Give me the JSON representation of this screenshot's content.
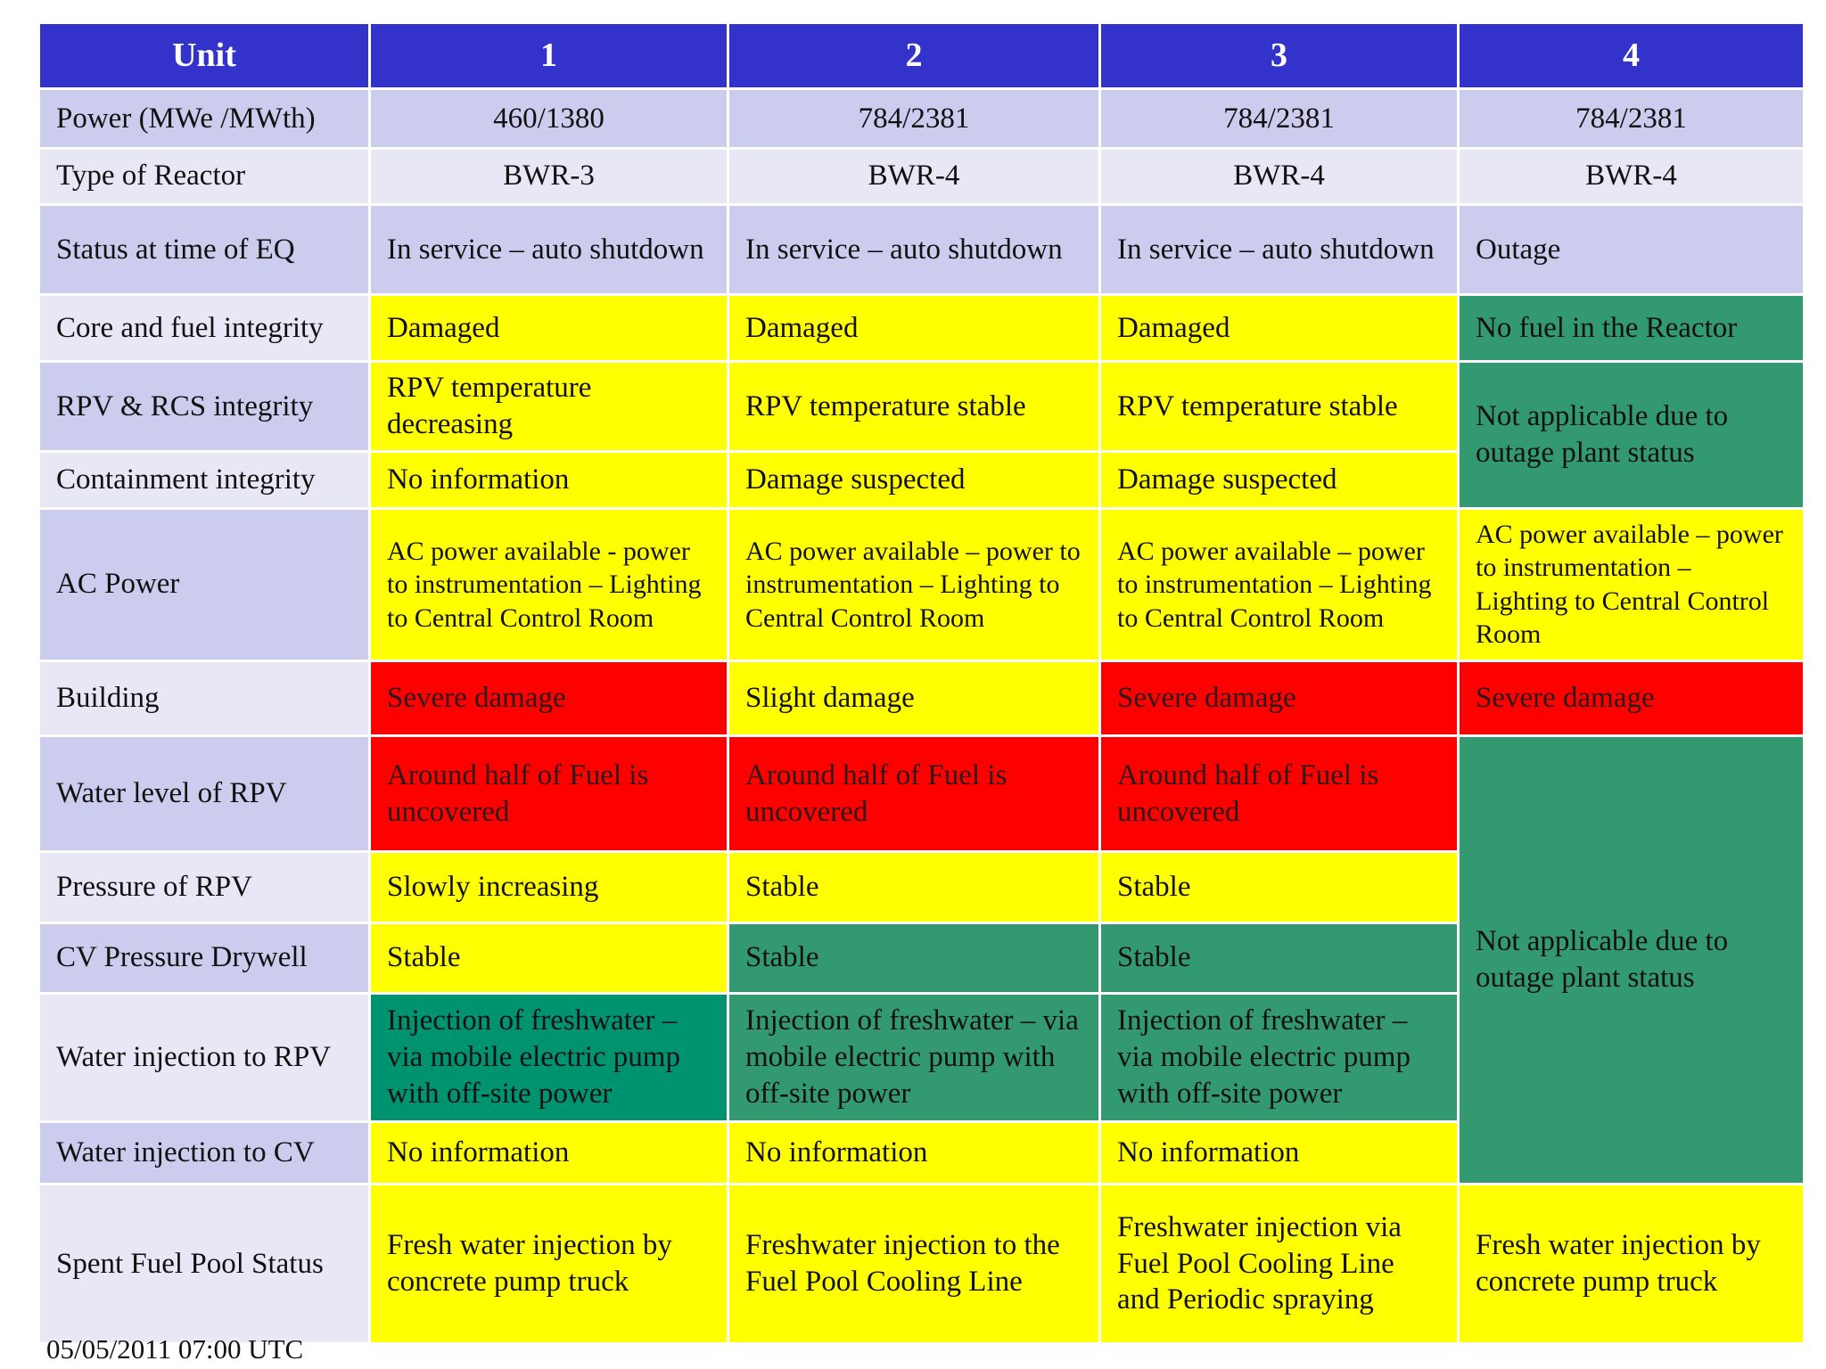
{
  "header": {
    "unit_label": "Unit",
    "units": [
      "1",
      "2",
      "3",
      "4"
    ]
  },
  "rows": {
    "power": {
      "label": "Power (MWe /MWth)",
      "u1": "460/1380",
      "u2": "784/2381",
      "u3": "784/2381",
      "u4": "784/2381"
    },
    "reactor_type": {
      "label": "Type of Reactor",
      "u1": "BWR-3",
      "u2": "BWR-4",
      "u3": "BWR-4",
      "u4": "BWR-4"
    },
    "status_eq": {
      "label": "Status at time of EQ",
      "u1": "In service – auto shutdown",
      "u2": "In service – auto shutdown",
      "u3": "In service – auto shutdown",
      "u4": "Outage"
    },
    "core_fuel": {
      "label": "Core and fuel integrity",
      "u1": "Damaged",
      "u2": "Damaged",
      "u3": "Damaged",
      "u4": "No fuel in the Reactor"
    },
    "rpv_rcs": {
      "label": "RPV & RCS integrity",
      "u1": "RPV temperature decreasing",
      "u2": "RPV temperature stable",
      "u3": "RPV temperature stable",
      "u4_span": "Not applicable due to outage plant status"
    },
    "containment": {
      "label": "Containment integrity",
      "u1": "No information",
      "u2": "Damage suspected",
      "u3": "Damage suspected"
    },
    "ac_power": {
      "label": "AC Power",
      "u1": "AC power available - power to instrumentation – Lighting to Central Control Room",
      "u2": "AC power available – power to instrumentation – Lighting to Central Control Room",
      "u3": "AC power available – power to instrumentation – Lighting to Central Control Room",
      "u4": "AC power available – power to instrumentation  – Lighting to Central Control Room"
    },
    "building": {
      "label": "Building",
      "u1": "Severe damage",
      "u2": "Slight damage",
      "u3": "Severe damage",
      "u4": "Severe damage"
    },
    "water_level": {
      "label": "Water level of RPV",
      "u1": "Around half of Fuel is uncovered",
      "u2": "Around half of Fuel is uncovered",
      "u3": "Around half of Fuel is uncovered",
      "u4_span": "Not applicable due to outage plant status"
    },
    "pressure_rpv": {
      "label": "Pressure of RPV",
      "u1": "Slowly increasing",
      "u2": "Stable",
      "u3": "Stable"
    },
    "cv_pressure": {
      "label": "CV Pressure Drywell",
      "u1": "Stable",
      "u2": "Stable",
      "u3": "Stable"
    },
    "water_inj_rpv": {
      "label": "Water injection to RPV",
      "u1": "Injection of freshwater – via mobile electric pump with off-site power",
      "u2": "Injection of freshwater – via mobile electric pump with off-site power",
      "u3": "Injection of freshwater – via mobile electric pump with off-site power"
    },
    "water_inj_cv": {
      "label": "Water injection to CV",
      "u1": "No information",
      "u2": "No information",
      "u3": "No information"
    },
    "spent_fuel": {
      "label": "Spent Fuel Pool Status",
      "u1": "Fresh water injection by concrete pump truck",
      "u2": "Freshwater injection to the Fuel Pool Cooling Line",
      "u3": "Freshwater injection via Fuel Pool Cooling Line and Periodic spraying",
      "u4": "Fresh water injection by concrete pump truck"
    }
  },
  "colors": {
    "header_bg": "#3333cc",
    "label_bg": "#ccccee",
    "label_bg_alt": "#e7e7f5",
    "yellow": "#ffff00",
    "red": "#ff0000",
    "green": "#339970",
    "teal": "#009370"
  },
  "footer": {
    "timestamp": "05/05/2011 07:00 UTC"
  }
}
